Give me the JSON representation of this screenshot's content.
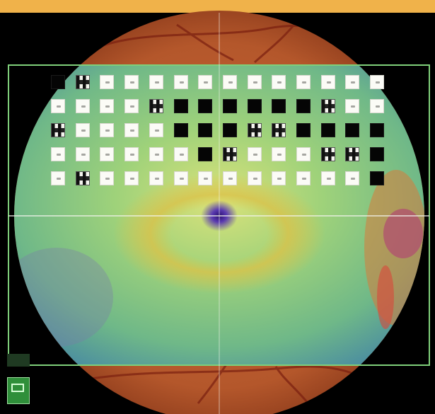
{
  "image": {
    "subject": "fundus-photo-with-thickness-map-and-perimetry-grid",
    "colors": {
      "top_bar": "#f0b24a",
      "background": "#000000",
      "fundus_orange": "#b4572b",
      "map_green": "#7ec46a",
      "map_yellow": "#d8c84a",
      "fovea_purple": "#4a2aa0",
      "border_green": "#7fcf7a"
    }
  },
  "grid": {
    "rows": [
      [
        "black",
        "mixed",
        "white",
        "white",
        "white",
        "white",
        "white",
        "white",
        "white",
        "white",
        "white",
        "white",
        "white",
        "white"
      ],
      [
        "white",
        "white",
        "white",
        "white",
        "mixed",
        "black",
        "black",
        "black",
        "black",
        "black",
        "black",
        "mixed",
        "white",
        "white"
      ],
      [
        "mixed",
        "white",
        "white",
        "white",
        "white",
        "black",
        "black",
        "black",
        "mixed",
        "mixed",
        "black",
        "black",
        "black",
        "black"
      ],
      [
        "white",
        "white",
        "white",
        "white",
        "white",
        "white",
        "black",
        "mixed",
        "white",
        "white",
        "white",
        "mixed",
        "mixed",
        "black"
      ],
      [
        "white",
        "mixed",
        "white",
        "white",
        "white",
        "white",
        "white",
        "white",
        "white",
        "white",
        "white",
        "white",
        "white",
        "black"
      ]
    ]
  }
}
